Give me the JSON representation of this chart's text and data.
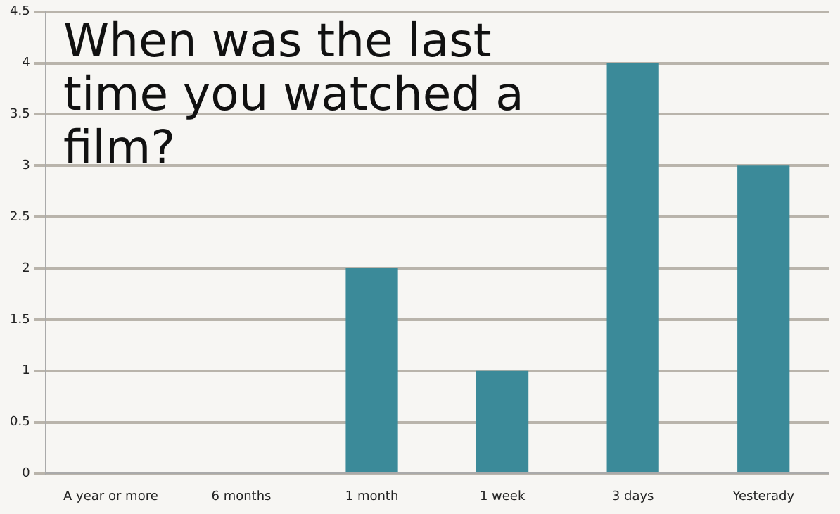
{
  "chart_data": {
    "type": "bar",
    "title": "When was the last time you watched a film?",
    "categories": [
      "A year or more",
      "6 months",
      "1 month",
      "1 week",
      "3 days",
      "Yesterady"
    ],
    "values": [
      0,
      0,
      2,
      1,
      4,
      3
    ],
    "color": "#3b8a99",
    "ylim": [
      0,
      4.5
    ],
    "yticks": [
      0,
      0.5,
      1,
      1.5,
      2,
      2.5,
      3,
      3.5,
      4,
      4.5
    ],
    "grid": "y"
  }
}
